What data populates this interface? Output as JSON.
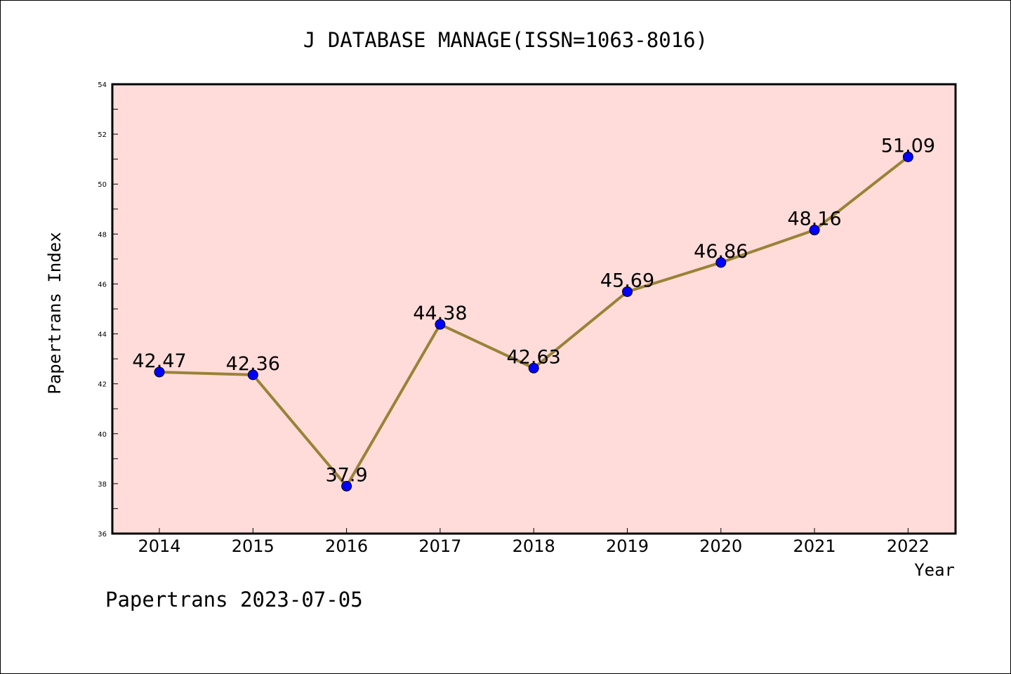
{
  "chart_data": {
    "type": "line",
    "title": "J DATABASE MANAGE(ISSN=1063-8016)",
    "xlabel": "Year",
    "ylabel": "Papertrans Index",
    "footer": "Papertrans 2023-07-05",
    "categories": [
      "2014",
      "2015",
      "2016",
      "2017",
      "2018",
      "2019",
      "2020",
      "2021",
      "2022"
    ],
    "series": [
      {
        "values": [
          42.47,
          42.36,
          37.9,
          44.38,
          42.63,
          45.69,
          46.86,
          48.16,
          51.09
        ],
        "labels": [
          "42.47",
          "42.36",
          "37.9",
          "44.38",
          "42.63",
          "45.69",
          "46.86",
          "48.16",
          "51.09"
        ]
      }
    ],
    "ylim": [
      36,
      54
    ],
    "yticks": [
      "36",
      "38",
      "40",
      "42",
      "44",
      "46",
      "48",
      "50",
      "52",
      "54"
    ],
    "colors": {
      "plot_background": "#ffdcd9",
      "line": "#9a8237",
      "marker": "#0000ff"
    },
    "grid": false,
    "legend": "none"
  }
}
